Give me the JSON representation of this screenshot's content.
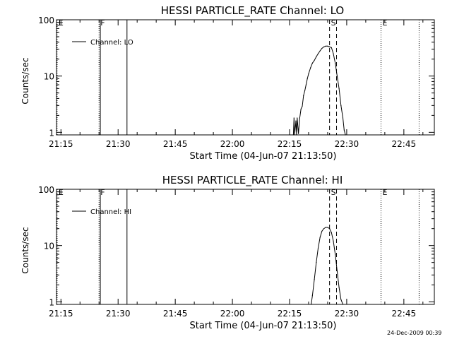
{
  "footer": {
    "timestamp": "24-Dec-2009 00:39"
  },
  "chart_data": [
    {
      "type": "line",
      "title": "HESSI PARTICLE_RATE Channel: LO",
      "xlabel": "Start Time (04-Jun-07 21:13:50)",
      "ylabel": "Counts/sec",
      "yscale": "log",
      "ylim": [
        0.9,
        100
      ],
      "xlim": [
        "21:13:50",
        "22:53:00"
      ],
      "xticks": [
        "21:15",
        "21:30",
        "21:45",
        "22:00",
        "22:15",
        "22:30",
        "22:45"
      ],
      "yticks": [
        "1",
        "10",
        "100"
      ],
      "legend": {
        "placement": "top-left",
        "entries": [
          "Channel: LO"
        ]
      },
      "grid": false,
      "markers": [
        {
          "label": "E",
          "time": "21:14:00",
          "style": "dotted"
        },
        {
          "label": "F",
          "time": "21:25:00",
          "style": "dotted"
        },
        {
          "label": "",
          "time": "21:25:20",
          "style": "solid"
        },
        {
          "label": "",
          "time": "21:32:20",
          "style": "solid"
        },
        {
          "label": "S",
          "time": "22:25:30",
          "style": "dashed"
        },
        {
          "label": "",
          "time": "22:27:20",
          "style": "dashed"
        },
        {
          "label": "E",
          "time": "22:39:00",
          "style": "dotted"
        },
        {
          "label": "",
          "time": "22:49:00",
          "style": "dotted"
        }
      ],
      "series": [
        {
          "name": "Channel: LO",
          "x": [
            "22:16:00",
            "22:16:10",
            "22:16:20",
            "22:16:40",
            "22:16:50",
            "22:17:00",
            "22:17:20",
            "22:17:40",
            "22:18:00",
            "22:18:20",
            "22:18:40",
            "22:19:00",
            "22:19:20",
            "22:19:40",
            "22:20:00",
            "22:20:30",
            "22:21:00",
            "22:21:30",
            "22:22:00",
            "22:22:30",
            "22:23:00",
            "22:23:30",
            "22:24:00",
            "22:24:30",
            "22:25:00",
            "22:25:30",
            "22:26:00",
            "22:26:30",
            "22:27:00",
            "22:27:30",
            "22:28:00",
            "22:28:30",
            "22:29:00",
            "22:29:20",
            "22:29:40"
          ],
          "y": [
            0.9,
            1.8,
            0.9,
            1.6,
            0.9,
            1.8,
            0.95,
            1.8,
            2.6,
            2.9,
            4.5,
            5.5,
            7,
            9,
            11,
            14,
            17,
            19,
            22,
            25,
            28,
            31,
            33,
            34,
            34,
            33,
            32,
            25,
            17,
            10,
            6,
            3,
            1.8,
            1.1,
            0.9
          ]
        }
      ]
    },
    {
      "type": "line",
      "title": "HESSI PARTICLE_RATE Channel: HI",
      "xlabel": "Start Time (04-Jun-07 21:13:50)",
      "ylabel": "Counts/sec",
      "yscale": "log",
      "ylim": [
        0.9,
        100
      ],
      "xlim": [
        "21:13:50",
        "22:53:00"
      ],
      "xticks": [
        "21:15",
        "21:30",
        "21:45",
        "22:00",
        "22:15",
        "22:30",
        "22:45"
      ],
      "yticks": [
        "1",
        "10",
        "100"
      ],
      "legend": {
        "placement": "top-left",
        "entries": [
          "Channel: HI"
        ]
      },
      "grid": false,
      "markers": [
        {
          "label": "E",
          "time": "21:14:00",
          "style": "dotted"
        },
        {
          "label": "F",
          "time": "21:25:00",
          "style": "dotted"
        },
        {
          "label": "",
          "time": "21:25:20",
          "style": "solid"
        },
        {
          "label": "",
          "time": "21:32:20",
          "style": "solid"
        },
        {
          "label": "S",
          "time": "22:25:30",
          "style": "dashed"
        },
        {
          "label": "",
          "time": "22:27:20",
          "style": "dashed"
        },
        {
          "label": "E",
          "time": "22:39:00",
          "style": "dotted"
        },
        {
          "label": "",
          "time": "22:49:00",
          "style": "dotted"
        }
      ],
      "series": [
        {
          "name": "Channel: HI",
          "x": [
            "22:20:40",
            "22:21:00",
            "22:21:30",
            "22:22:00",
            "22:22:30",
            "22:23:00",
            "22:23:30",
            "22:24:00",
            "22:24:30",
            "22:25:00",
            "22:25:30",
            "22:26:00",
            "22:26:30",
            "22:27:00",
            "22:27:30",
            "22:28:00",
            "22:28:30",
            "22:29:00"
          ],
          "y": [
            0.9,
            1.3,
            2.5,
            5,
            9,
            14,
            18,
            20,
            21,
            21,
            20,
            17,
            12,
            7,
            3.5,
            1.8,
            1.1,
            0.9
          ]
        }
      ]
    }
  ]
}
